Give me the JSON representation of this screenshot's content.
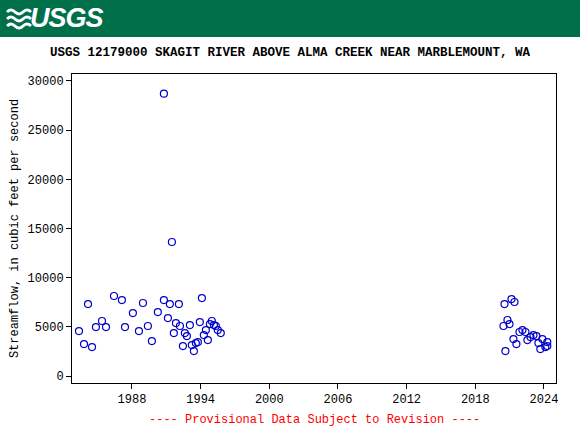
{
  "banner": {
    "text": "USGS"
  },
  "chart_data": {
    "type": "scatter",
    "title": "USGS 12179000 SKAGIT RIVER ABOVE ALMA CREEK NEAR MARBLEMOUNT, WA",
    "y_label": "Streamflow, in cubic feet per second",
    "annotations": [
      "---- Provisional Data Subject to Revision ----"
    ],
    "x": [
      1983.37,
      1983.81,
      1984.16,
      1984.51,
      1984.85,
      1985.38,
      1985.73,
      1986.43,
      1987.12,
      1987.39,
      1988.08,
      1988.61,
      1988.96,
      1989.39,
      1989.74,
      1990.26,
      1990.79,
      1990.79,
      1991.14,
      1991.31,
      1991.49,
      1991.66,
      1991.84,
      1992.1,
      1992.19,
      1992.45,
      1992.62,
      1992.8,
      1993.06,
      1993.23,
      1993.41,
      1993.58,
      1993.76,
      1993.93,
      1994.11,
      1994.28,
      1994.46,
      1994.63,
      1994.81,
      1994.98,
      1995.16,
      1995.33,
      1995.5,
      1995.76,
      2020.46,
      2020.63,
      2020.55,
      2020.81,
      2020.99,
      2021.16,
      2021.42,
      2021.33,
      2021.59,
      2021.86,
      2022.12,
      2022.38,
      2022.55,
      2022.82,
      2023.08,
      2023.34,
      2023.51,
      2023.68,
      2023.86,
      2024.12,
      2024.29,
      2024.29
    ],
    "values": [
      4580,
      3260,
      7320,
      2950,
      4980,
      5600,
      4980,
      8140,
      7730,
      4980,
      6410,
      4580,
      7430,
      5090,
      3560,
      6510,
      28700,
      7730,
      5900,
      7320,
      13630,
      4370,
      5390,
      7320,
      5090,
      3050,
      4370,
      4070,
      5190,
      3150,
      2540,
      3360,
      3460,
      5490,
      7930,
      4170,
      4680,
      3660,
      5290,
      5600,
      5190,
      5090,
      4680,
      4370,
      5090,
      2540,
      7320,
      5700,
      5290,
      7830,
      7530,
      3760,
      3260,
      4480,
      4680,
      4480,
      3660,
      3970,
      4170,
      4070,
      3360,
      2750,
      3760,
      2950,
      3460,
      3050
    ],
    "color": "#0000cc",
    "marker": "circle-open",
    "xlim": [
      1982.76,
      2025.05
    ],
    "xticks": [
      1988,
      1994,
      2000,
      2006,
      2012,
      2018,
      2024
    ],
    "ylim": [
      -700,
      30700
    ],
    "yticks": [
      0,
      5000,
      10000,
      15000,
      20000,
      25000,
      30000
    ],
    "grid": false
  }
}
